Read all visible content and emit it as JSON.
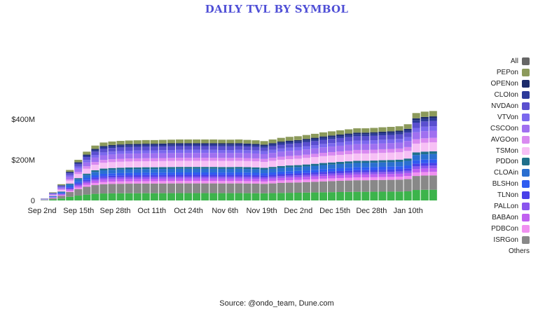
{
  "chart_data": {
    "type": "bar",
    "stacked": true,
    "title": "DAILY TVL BY SYMBOL",
    "source": "Source: @ondo_team, Dune.com",
    "xlabel": "",
    "ylabel": "",
    "ylim": [
      0,
      460
    ],
    "y_unit": "$M",
    "y_ticks": [
      {
        "value": 0,
        "label": "0"
      },
      {
        "value": 200,
        "label": "$200M"
      },
      {
        "value": 400,
        "label": "$400M"
      }
    ],
    "x_ticks": [
      "Sep 2nd",
      "Sep 15th",
      "Sep 28th",
      "Oct 11th",
      "Oct 24th",
      "Nov 6th",
      "Nov 19th",
      "Dec 2nd",
      "Dec 15th",
      "Dec 28th",
      "Jan 10th"
    ],
    "legend_position": "right",
    "x": [
      "Sep 2",
      "Sep 5",
      "Sep 8",
      "Sep 11",
      "Sep 14",
      "Sep 17",
      "Sep 20",
      "Sep 23",
      "Sep 26",
      "Sep 29",
      "Oct 2",
      "Oct 5",
      "Oct 8",
      "Oct 11",
      "Oct 14",
      "Oct 17",
      "Oct 20",
      "Oct 23",
      "Oct 26",
      "Oct 29",
      "Nov 1",
      "Nov 4",
      "Nov 7",
      "Nov 10",
      "Nov 13",
      "Nov 16",
      "Nov 19",
      "Nov 22",
      "Nov 25",
      "Nov 28",
      "Dec 1",
      "Dec 4",
      "Dec 7",
      "Dec 10",
      "Dec 13",
      "Dec 16",
      "Dec 19",
      "Dec 22",
      "Dec 25",
      "Dec 28",
      "Dec 31",
      "Jan 3",
      "Jan 6",
      "Jan 9",
      "Jan 12",
      "Jan 15",
      "Jan 18"
    ],
    "totals": [
      10,
      40,
      80,
      150,
      200,
      240,
      270,
      285,
      290,
      293,
      295,
      296,
      297,
      297,
      298,
      299,
      300,
      300,
      300,
      300,
      300,
      299,
      299,
      300,
      298,
      296,
      292,
      300,
      308,
      313,
      316,
      322,
      328,
      335,
      340,
      345,
      350,
      355,
      355,
      357,
      360,
      362,
      365,
      375,
      430,
      437,
      440
    ],
    "series": [
      {
        "name": "All",
        "color": "#666666",
        "share": 0
      },
      {
        "name": "PEPon",
        "color": "#8c9a5b",
        "share": 0.06
      },
      {
        "name": "OPENon",
        "color": "#1b2a6b",
        "share": 0.02
      },
      {
        "name": "CLOIon",
        "color": "#2c3a9a",
        "share": 0.03
      },
      {
        "name": "NVDAon",
        "color": "#5a4fcf",
        "share": 0.06
      },
      {
        "name": "VTVon",
        "color": "#7b68ee",
        "share": 0.05
      },
      {
        "name": "CSCOon",
        "color": "#a070f0",
        "share": 0.08
      },
      {
        "name": "AVGOon",
        "color": "#d98af0",
        "share": 0.05
      },
      {
        "name": "TSMon",
        "color": "#f7c0f5",
        "share": 0.1
      },
      {
        "name": "PDDon",
        "color": "#1f6f8b",
        "share": 0.03
      },
      {
        "name": "CLOAin",
        "color": "#2a6fd0",
        "share": 0.06
      },
      {
        "name": "BLSHon",
        "color": "#2f5bf0",
        "share": 0.04
      },
      {
        "name": "TLNon",
        "color": "#4a40e8",
        "share": 0.03
      },
      {
        "name": "PALLon",
        "color": "#8a55ee",
        "share": 0.03
      },
      {
        "name": "BABAon",
        "color": "#c060f0",
        "share": 0.04
      },
      {
        "name": "PDBCon",
        "color": "#f090f0",
        "share": 0.04
      },
      {
        "name": "ISRGon",
        "color": "#888888",
        "share": 0.16
      },
      {
        "name": "Others",
        "color": "#3cb44b",
        "share": 0.12
      }
    ]
  }
}
